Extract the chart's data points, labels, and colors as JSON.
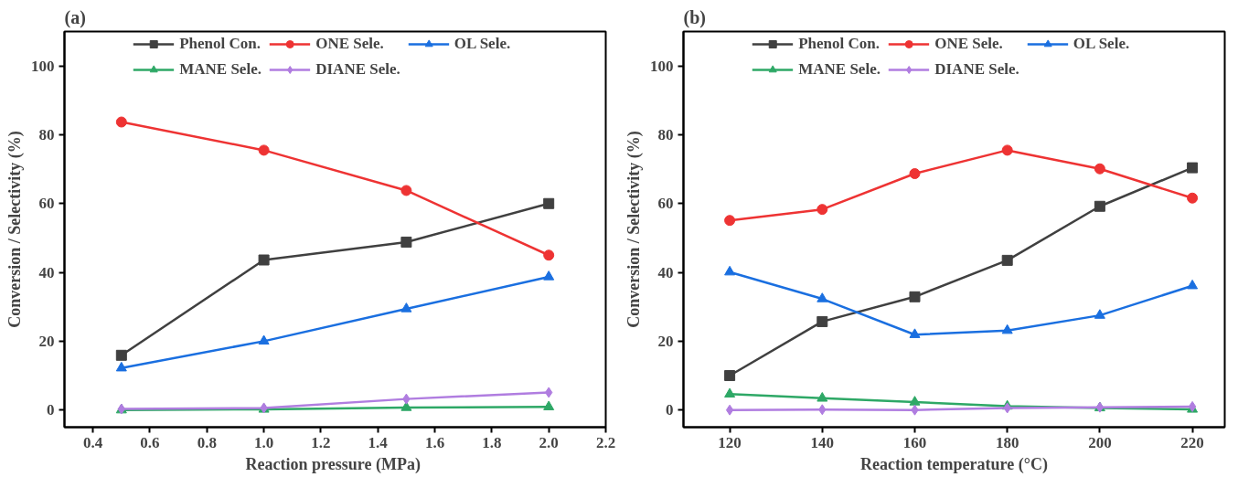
{
  "chart_data": [
    {
      "type": "line",
      "title": "(a)",
      "xlabel": "Reaction pressure  (MPa)",
      "ylabel": "Conversion / Selectivity (%)",
      "x": [
        0.5,
        1.0,
        1.5,
        2.0
      ],
      "xlim": [
        0.3,
        2.2
      ],
      "xticks": [
        {
          "value": 0.4,
          "label": "0.4"
        },
        {
          "value": 0.6,
          "label": "0.6"
        },
        {
          "value": 0.8,
          "label": "0.8"
        },
        {
          "value": 1.0,
          "label": "1.0"
        },
        {
          "value": 1.2,
          "label": "1.2"
        },
        {
          "value": 1.4,
          "label": "1.4"
        },
        {
          "value": 1.6,
          "label": "1.6"
        },
        {
          "value": 1.8,
          "label": "1.8"
        },
        {
          "value": 2.0,
          "label": "2.0"
        },
        {
          "value": 2.2,
          "label": "2.2"
        }
      ],
      "ylim": [
        -5,
        110
      ],
      "yticks": [
        0,
        20,
        40,
        60,
        80,
        100
      ],
      "grid": false,
      "legend": "top",
      "line_style": "solid",
      "series": [
        {
          "name": "Phenol Con.",
          "color": "#404040",
          "marker": "square",
          "values": [
            15.9,
            43.6,
            48.8,
            60.0
          ]
        },
        {
          "name": "ONE Sele.",
          "color": "#ee3333",
          "marker": "circle",
          "values": [
            83.7,
            75.5,
            63.8,
            45.0
          ]
        },
        {
          "name": "OL Sele.",
          "color": "#1a6fe0",
          "marker": "triangle",
          "values": [
            12.2,
            20.0,
            29.4,
            38.7
          ]
        },
        {
          "name": "MANE Sele.",
          "color": "#2ea866",
          "marker": "triangle",
          "values": [
            0.0,
            0.2,
            0.7,
            0.9
          ]
        },
        {
          "name": "DIANE Sele.",
          "color": "#b07de0",
          "marker": "diamond",
          "values": [
            0.3,
            0.6,
            3.2,
            5.1
          ]
        }
      ]
    },
    {
      "type": "line",
      "title": "(b)",
      "xlabel": "Reaction temperature (°C)",
      "ylabel": "Conversion / Selectivity (%)",
      "x": [
        120,
        140,
        160,
        180,
        200,
        220
      ],
      "xlim": [
        110,
        227
      ],
      "xticks": [
        120,
        140,
        160,
        180,
        200,
        220
      ],
      "ylim": [
        -5,
        110
      ],
      "yticks": [
        0,
        20,
        40,
        60,
        80,
        100
      ],
      "grid": false,
      "legend": "top",
      "line_style": "solid",
      "series": [
        {
          "name": "Phenol Con.",
          "color": "#404040",
          "marker": "square",
          "values": [
            10.0,
            25.7,
            32.9,
            43.5,
            59.2,
            70.4
          ]
        },
        {
          "name": "ONE Sele.",
          "color": "#ee3333",
          "marker": "circle",
          "values": [
            55.1,
            58.3,
            68.7,
            75.5,
            70.1,
            61.6
          ]
        },
        {
          "name": "OL Sele.",
          "color": "#1a6fe0",
          "marker": "triangle",
          "values": [
            40.1,
            32.3,
            21.9,
            23.1,
            27.5,
            36.1
          ]
        },
        {
          "name": "MANE Sele.",
          "color": "#2ea866",
          "marker": "triangle",
          "values": [
            4.6,
            3.4,
            2.3,
            1.1,
            0.6,
            0.2
          ]
        },
        {
          "name": "DIANE Sele.",
          "color": "#b07de0",
          "marker": "diamond",
          "values": [
            0.0,
            0.1,
            0.0,
            0.6,
            0.8,
            1.0
          ]
        }
      ]
    }
  ]
}
